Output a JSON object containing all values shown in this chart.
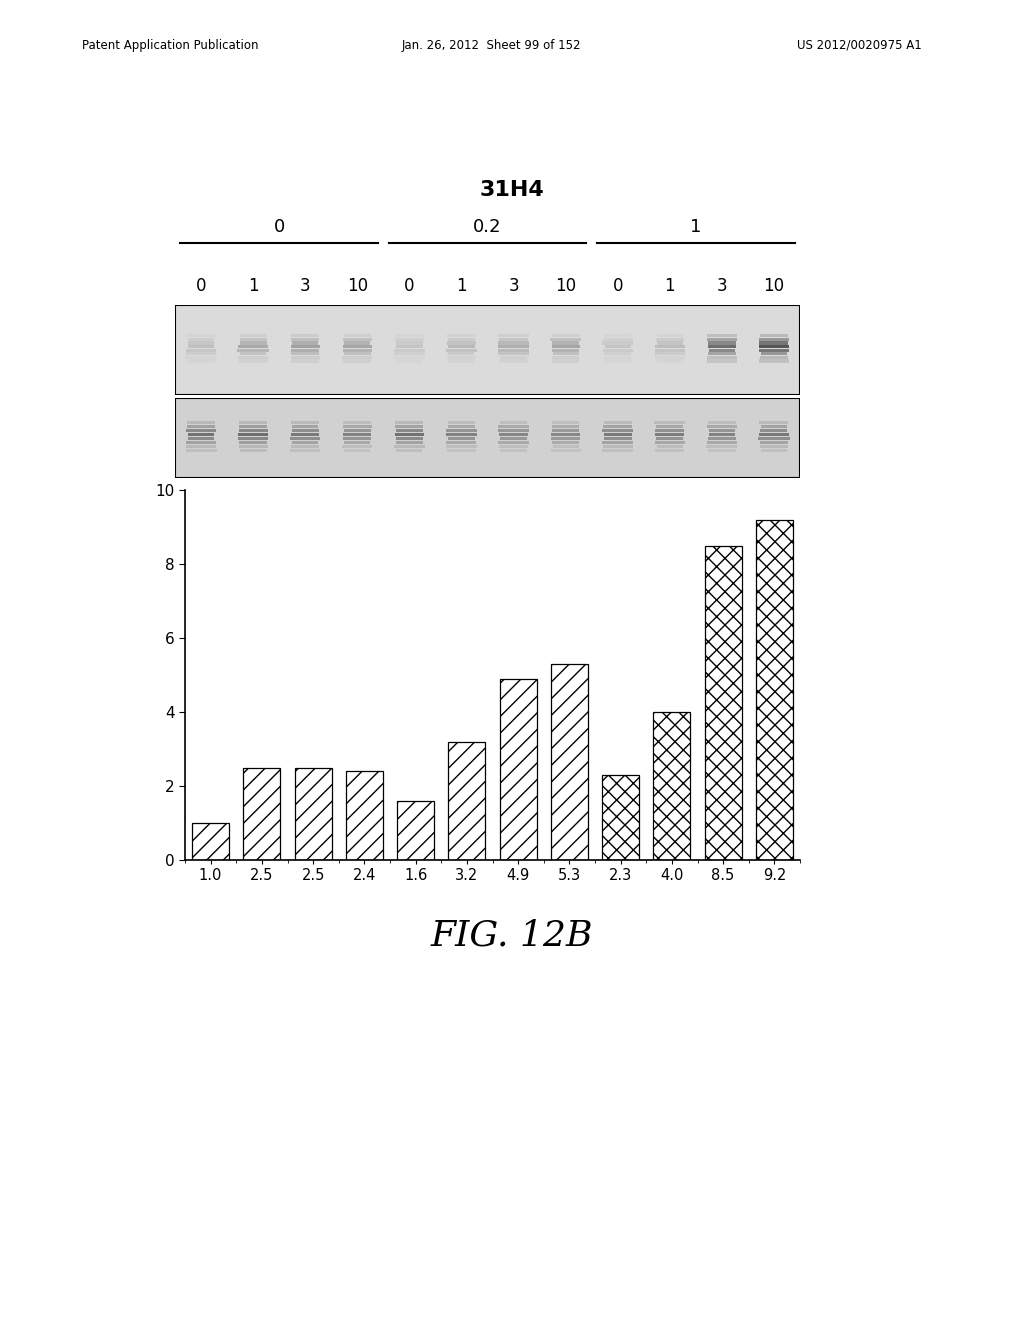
{
  "title": "31H4",
  "fig_label": "FIG. 12B",
  "patent_header_left": "Patent Application Publication",
  "patent_header_mid": "Jan. 26, 2012  Sheet 99 of 152",
  "patent_header_right": "US 2012/0020975 A1",
  "group_labels": [
    "0",
    "0.2",
    "1"
  ],
  "sub_labels": [
    "0",
    "1",
    "3",
    "10",
    "0",
    "1",
    "3",
    "10",
    "0",
    "1",
    "3",
    "10"
  ],
  "bar_values": [
    1.0,
    2.5,
    2.5,
    2.4,
    1.6,
    3.2,
    4.9,
    5.3,
    2.3,
    4.0,
    8.5,
    9.2
  ],
  "x_tick_labels": [
    "1.0",
    "2.5",
    "2.5",
    "2.4",
    "1.6",
    "3.2",
    "4.9",
    "5.3",
    "2.3",
    "4.0",
    "8.5",
    "9.2"
  ],
  "ylim": [
    0,
    10
  ],
  "yticks": [
    0,
    2,
    4,
    6,
    8,
    10
  ],
  "bg_color": "#ffffff",
  "bar_edge_color": "#000000",
  "hatch_patterns": [
    "//",
    "//",
    "//",
    "//",
    "//",
    "//",
    "//",
    "//",
    "xx",
    "xx",
    "xx",
    "xx"
  ],
  "blot1_band_intensities": [
    0.18,
    0.32,
    0.38,
    0.35,
    0.15,
    0.22,
    0.3,
    0.35,
    0.14,
    0.2,
    0.72,
    0.88
  ],
  "blot2_band_intensities": [
    0.62,
    0.65,
    0.58,
    0.52,
    0.62,
    0.52,
    0.5,
    0.48,
    0.58,
    0.55,
    0.52,
    0.58
  ]
}
